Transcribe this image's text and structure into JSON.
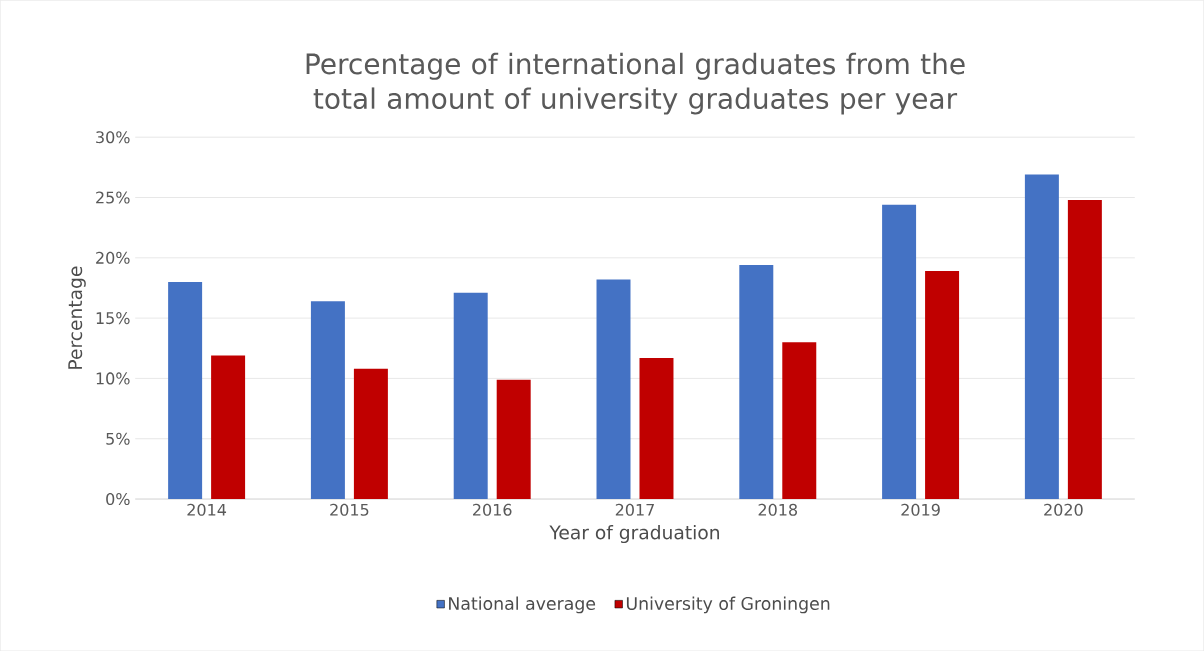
{
  "chart_data": {
    "type": "bar",
    "title": "Percentage of international graduates from the total amount of university graduates per year",
    "xlabel": "Year of graduation",
    "ylabel": "Percentage",
    "categories": [
      "2014",
      "2015",
      "2016",
      "2017",
      "2018",
      "2019",
      "2020"
    ],
    "series": [
      {
        "name": "National average",
        "color": "#4472c4",
        "values": [
          18.0,
          16.4,
          17.1,
          18.2,
          19.4,
          24.4,
          26.9
        ]
      },
      {
        "name": "University of Groningen",
        "color": "#c00000",
        "values": [
          11.9,
          10.8,
          9.9,
          11.7,
          13.0,
          18.9,
          24.8
        ]
      }
    ],
    "ylim": [
      0,
      30
    ],
    "yticks": [
      {
        "value": 0,
        "label": "0%"
      },
      {
        "value": 5,
        "label": "5%"
      },
      {
        "value": 10,
        "label": "10%"
      },
      {
        "value": 15,
        "label": "15%"
      },
      {
        "value": 20,
        "label": "20%"
      },
      {
        "value": 25,
        "label": "25%"
      },
      {
        "value": 30,
        "label": "30%"
      }
    ],
    "grid": "y",
    "legend": "bottom"
  }
}
